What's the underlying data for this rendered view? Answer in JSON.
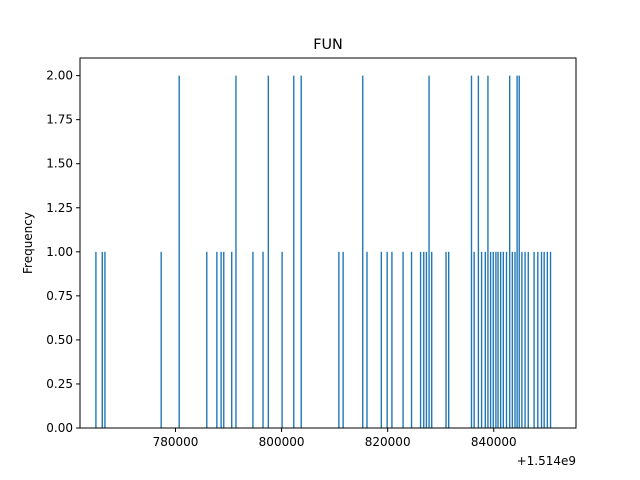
{
  "chart_data": {
    "type": "bar",
    "title": "FUN",
    "xlabel": "",
    "ylabel": "Frequency",
    "x_offset_label": "+1.514e9",
    "xlim": [
      762000,
      855500
    ],
    "ylim": [
      0,
      2.1
    ],
    "x_ticks": [
      780000,
      800000,
      820000,
      840000
    ],
    "x_tick_labels": [
      "780000",
      "800000",
      "820000",
      "840000"
    ],
    "y_ticks": [
      0,
      0.25,
      0.5,
      0.75,
      1.0,
      1.25,
      1.5,
      1.75,
      2.0
    ],
    "y_tick_labels": [
      "0.00",
      "0.25",
      "0.50",
      "0.75",
      "1.00",
      "1.25",
      "1.50",
      "1.75",
      "2.00"
    ],
    "grid": false,
    "color": "#1f77b4",
    "bin_width": 260,
    "bars": [
      {
        "x": 765000,
        "y": 1
      },
      {
        "x": 766200,
        "y": 1
      },
      {
        "x": 766700,
        "y": 1
      },
      {
        "x": 777300,
        "y": 1
      },
      {
        "x": 780700,
        "y": 2
      },
      {
        "x": 785900,
        "y": 1
      },
      {
        "x": 787800,
        "y": 1
      },
      {
        "x": 788600,
        "y": 1
      },
      {
        "x": 789100,
        "y": 1
      },
      {
        "x": 790600,
        "y": 1
      },
      {
        "x": 791400,
        "y": 2
      },
      {
        "x": 794600,
        "y": 1
      },
      {
        "x": 796500,
        "y": 1
      },
      {
        "x": 797500,
        "y": 2
      },
      {
        "x": 800100,
        "y": 1
      },
      {
        "x": 802300,
        "y": 2
      },
      {
        "x": 803700,
        "y": 2
      },
      {
        "x": 810800,
        "y": 1
      },
      {
        "x": 811600,
        "y": 1
      },
      {
        "x": 815300,
        "y": 2
      },
      {
        "x": 816100,
        "y": 1
      },
      {
        "x": 818800,
        "y": 1
      },
      {
        "x": 819900,
        "y": 1
      },
      {
        "x": 820800,
        "y": 1
      },
      {
        "x": 822900,
        "y": 1
      },
      {
        "x": 824500,
        "y": 1
      },
      {
        "x": 826200,
        "y": 1
      },
      {
        "x": 826800,
        "y": 1
      },
      {
        "x": 827300,
        "y": 1
      },
      {
        "x": 827800,
        "y": 2
      },
      {
        "x": 828300,
        "y": 1
      },
      {
        "x": 831000,
        "y": 1
      },
      {
        "x": 831500,
        "y": 1
      },
      {
        "x": 835800,
        "y": 2
      },
      {
        "x": 836300,
        "y": 1
      },
      {
        "x": 837100,
        "y": 2
      },
      {
        "x": 837700,
        "y": 1
      },
      {
        "x": 838400,
        "y": 1
      },
      {
        "x": 838900,
        "y": 2
      },
      {
        "x": 839400,
        "y": 1
      },
      {
        "x": 839900,
        "y": 1
      },
      {
        "x": 840400,
        "y": 1
      },
      {
        "x": 840800,
        "y": 1
      },
      {
        "x": 841300,
        "y": 1
      },
      {
        "x": 841800,
        "y": 1
      },
      {
        "x": 842400,
        "y": 1
      },
      {
        "x": 843000,
        "y": 2
      },
      {
        "x": 843500,
        "y": 1
      },
      {
        "x": 844000,
        "y": 1
      },
      {
        "x": 844400,
        "y": 2
      },
      {
        "x": 844800,
        "y": 2
      },
      {
        "x": 845300,
        "y": 1
      },
      {
        "x": 845900,
        "y": 1
      },
      {
        "x": 846500,
        "y": 1
      },
      {
        "x": 847600,
        "y": 1
      },
      {
        "x": 848300,
        "y": 1
      },
      {
        "x": 849000,
        "y": 1
      },
      {
        "x": 849500,
        "y": 1
      },
      {
        "x": 850100,
        "y": 1
      },
      {
        "x": 850700,
        "y": 1
      }
    ]
  }
}
